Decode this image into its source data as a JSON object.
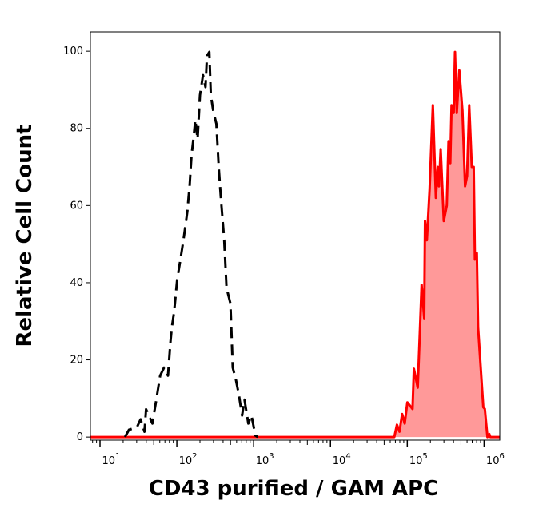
{
  "chart_data": {
    "type": "area",
    "title": "",
    "xlabel": "CD43 purified / GAM APC",
    "ylabel": "Relative Cell Count",
    "x_scale": "log",
    "xlim": [
      7.5,
      1600000
    ],
    "ylim": [
      -0.8,
      105
    ],
    "grid": false,
    "legend": "none",
    "y_ticks": [
      0,
      20,
      40,
      60,
      80,
      100
    ],
    "x_ticks": [
      {
        "value": 10,
        "base": "10",
        "exp": "1"
      },
      {
        "value": 100,
        "base": "10",
        "exp": "2"
      },
      {
        "value": 1000,
        "base": "10",
        "exp": "3"
      },
      {
        "value": 10000,
        "base": "10",
        "exp": "4"
      },
      {
        "value": 100000,
        "base": "10",
        "exp": "5"
      },
      {
        "value": 1000000,
        "base": "10",
        "exp": "6"
      }
    ],
    "series": [
      {
        "style": "dashed",
        "color": "#000000",
        "fill": "none",
        "x": [
          21.1,
          23.8,
          30.1,
          33.8,
          37.9,
          39.8,
          48.0,
          54.0,
          60.6,
          68.1,
          76.6,
          82.2,
          86.1,
          92.3,
          101,
          109,
          122,
          137,
          147,
          155,
          166,
          174,
          186,
          200,
          219,
          236,
          247,
          265,
          277,
          298,
          327,
          351,
          376,
          413,
          443,
          498,
          534,
          587,
          644,
          708,
          759,
          853,
          937,
          1052,
          1130
        ],
        "y": [
          0,
          1.9,
          2.5,
          4.6,
          1.4,
          7.2,
          3.5,
          9.7,
          15.9,
          18,
          15.9,
          24.2,
          28.4,
          32.5,
          40.8,
          44.9,
          51.1,
          58.4,
          65.6,
          72.9,
          78,
          82.2,
          77.2,
          88.6,
          93.8,
          90.7,
          98.8,
          99.8,
          88.6,
          84.5,
          81.2,
          69.8,
          61.5,
          51.1,
          38.7,
          34.6,
          18,
          14.9,
          10.8,
          5.6,
          9.7,
          3.5,
          5.6,
          0.4,
          0
        ]
      },
      {
        "style": "solid",
        "color": "#ff0000",
        "fill": "#ff9999",
        "x": [
          7.5,
          67800,
          73300,
          79300,
          85700,
          92700,
          100200,
          117000,
          122000,
          137000,
          154000,
          166000,
          170000,
          180000,
          195000,
          215000,
          236000,
          249000,
          259000,
          272000,
          299000,
          327000,
          344000,
          363000,
          377000,
          402000,
          418000,
          441000,
          476000,
          522000,
          566000,
          601000,
          641000,
          692000,
          733000,
          760000,
          805000,
          836000,
          977000,
          1023000,
          1107000,
          1169000,
          1205000,
          1600000
        ],
        "y": [
          0,
          0,
          3.2,
          1.4,
          6,
          3.5,
          9,
          7.3,
          17.7,
          12.8,
          39.4,
          30.8,
          56,
          51,
          64,
          86,
          62,
          70,
          65,
          74.6,
          56,
          60,
          76.7,
          71,
          86,
          84,
          99.8,
          84,
          95,
          84.6,
          65,
          67.7,
          86,
          70,
          70,
          46,
          47.7,
          28.4,
          7.7,
          7.3,
          0,
          0.8,
          0,
          0
        ]
      }
    ]
  }
}
